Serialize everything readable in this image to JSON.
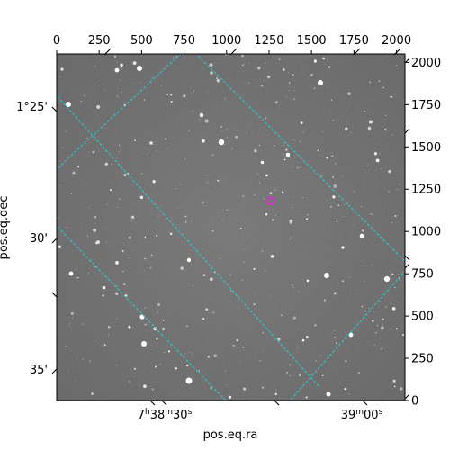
{
  "chart_data": {
    "type": "scatter",
    "title": "",
    "xlabel": "pos.eq.ra",
    "ylabel": "pos.eq.dec",
    "pixel_axes": {
      "x_range": [
        0,
        2050
      ],
      "y_range": [
        0,
        2050
      ],
      "x_ticks": [
        "0",
        "250",
        "500",
        "750",
        "1000",
        "1250",
        "1500",
        "1750",
        "2000"
      ],
      "y_ticks": [
        "0",
        "250",
        "500",
        "750",
        "1000",
        "1250",
        "1500",
        "1750",
        "2000"
      ]
    },
    "world_axes": {
      "ra_tick_labels": [
        "7h38m30s",
        "39m00s"
      ],
      "dec_tick_labels": [
        "1°25'",
        "30'",
        "35'"
      ]
    },
    "grid": true,
    "grid_color": "#22d3dd",
    "background": "star field image (grayscale)",
    "marker": {
      "shape": "circle",
      "color": "#d633cc",
      "x": 1260,
      "y": 1180
    }
  }
}
